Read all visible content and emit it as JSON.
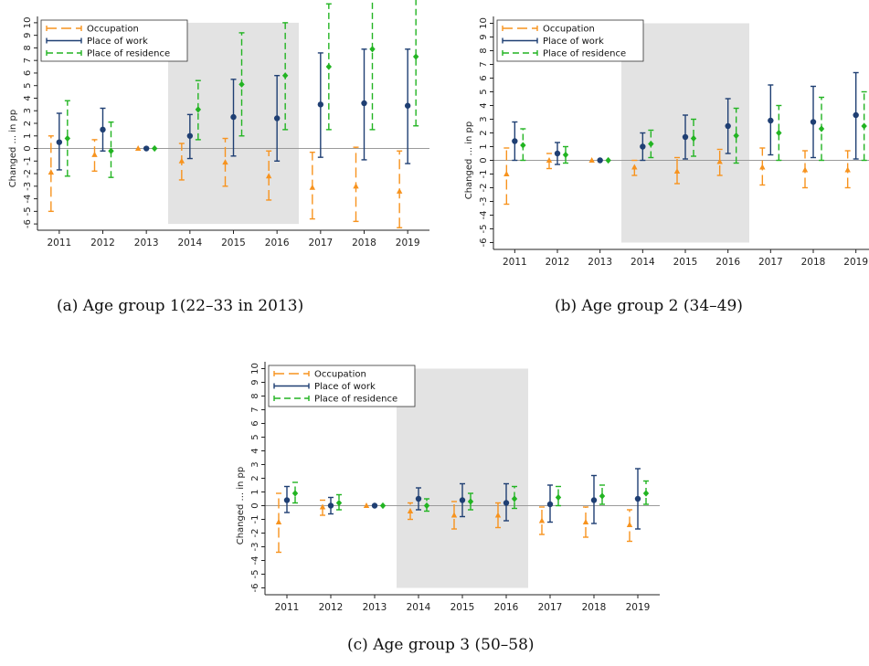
{
  "colors": {
    "occupation": "#f7931e",
    "work": "#1f3f73",
    "residence": "#22b422",
    "shade": "#e3e3e3",
    "axis": "#222222"
  },
  "legend_labels": [
    "Occupation",
    "Place of work",
    "Place of residence"
  ],
  "ylabel": "Changed ... in pp",
  "years": [
    "2011",
    "2012",
    "2013",
    "2014",
    "2015",
    "2016",
    "2017",
    "2018",
    "2019"
  ],
  "chart_data": [
    {
      "type": "scatter",
      "caption": "(a)  Age group 1(22–33 in 2013)",
      "ylim": [
        -6.5,
        10.5
      ],
      "yticks": [
        "-6",
        "-5",
        "-4",
        "-3",
        "-2",
        "-1",
        "0",
        "1",
        "2",
        "3",
        "4",
        "5",
        "6",
        "7",
        "8",
        "9",
        "10"
      ],
      "shaded": [
        "2014",
        "2016"
      ],
      "series": [
        {
          "name": "Occupation",
          "values": [
            -1.9,
            -0.5,
            0,
            -1.0,
            -1.1,
            -2.2,
            -3.1,
            -3.0,
            -3.4
          ],
          "lo": [
            -5.0,
            -1.8,
            0,
            -2.5,
            -3.0,
            -4.1,
            -5.6,
            -5.8,
            -6.3
          ],
          "hi": [
            1.0,
            0.7,
            0,
            0.4,
            0.8,
            -0.2,
            -0.3,
            0.1,
            -0.2
          ]
        },
        {
          "name": "Place of work",
          "values": [
            0.5,
            1.5,
            0,
            1.0,
            2.5,
            2.4,
            3.5,
            3.6,
            3.4
          ],
          "lo": [
            -1.7,
            -0.2,
            0,
            -0.8,
            -0.6,
            -1.0,
            -0.7,
            -0.9,
            -1.2
          ],
          "hi": [
            2.8,
            3.2,
            0,
            2.7,
            5.5,
            5.8,
            7.6,
            7.9,
            7.9
          ]
        },
        {
          "name": "Place of residence",
          "values": [
            0.8,
            -0.2,
            0,
            3.1,
            5.1,
            5.8,
            6.5,
            7.9,
            7.3
          ],
          "lo": [
            -2.2,
            -2.3,
            0,
            0.7,
            1.0,
            1.5,
            1.5,
            1.5,
            1.8
          ],
          "hi": [
            3.8,
            2.1,
            0,
            5.4,
            9.2,
            10.0,
            11.5,
            13.0,
            12.5
          ]
        }
      ]
    },
    {
      "type": "scatter",
      "caption": "(b)  Age group 2 (34–49)",
      "ylim": [
        -6.5,
        10.5
      ],
      "yticks": [
        "-6",
        "-5",
        "-4",
        "-3",
        "-2",
        "-1",
        "0",
        "1",
        "2",
        "3",
        "4",
        "5",
        "6",
        "7",
        "8",
        "9",
        "10"
      ],
      "shaded": [
        "2014",
        "2016"
      ],
      "series": [
        {
          "name": "Occupation",
          "values": [
            -1.0,
            0,
            0,
            -0.5,
            -0.8,
            -0.1,
            -0.5,
            -0.7,
            -0.7
          ],
          "lo": [
            -3.2,
            -0.6,
            0,
            -1.1,
            -1.7,
            -1.1,
            -1.8,
            -2.0,
            -2.0
          ],
          "hi": [
            0.9,
            0.5,
            0,
            0.0,
            0.2,
            0.8,
            0.9,
            0.7,
            0.7
          ]
        },
        {
          "name": "Place of work",
          "values": [
            1.4,
            0.5,
            0,
            1.0,
            1.7,
            2.5,
            2.9,
            2.8,
            3.3
          ],
          "lo": [
            0.0,
            -0.3,
            0,
            0.0,
            0.1,
            0.5,
            0.4,
            0.2,
            0.1
          ],
          "hi": [
            2.8,
            1.3,
            0,
            2.0,
            3.3,
            4.5,
            5.5,
            5.4,
            6.4
          ]
        },
        {
          "name": "Place of residence",
          "values": [
            1.1,
            0.4,
            0,
            1.2,
            1.6,
            1.8,
            2.0,
            2.3,
            2.5
          ],
          "lo": [
            0.0,
            -0.2,
            0,
            0.2,
            0.3,
            -0.2,
            0.0,
            0.0,
            0.0
          ],
          "hi": [
            2.3,
            1.0,
            0,
            2.2,
            3.0,
            3.8,
            4.0,
            4.6,
            5.0
          ]
        }
      ]
    },
    {
      "type": "scatter",
      "caption": "(c)  Age group 3 (50–58)",
      "ylim": [
        -6.5,
        10.5
      ],
      "yticks": [
        "-6",
        "-5",
        "-4",
        "-3",
        "-2",
        "-1",
        "0",
        "1",
        "2",
        "3",
        "4",
        "5",
        "6",
        "7",
        "8",
        "9",
        "10"
      ],
      "shaded": [
        "2014",
        "2016"
      ],
      "series": [
        {
          "name": "Occupation",
          "values": [
            -1.2,
            -0.1,
            0,
            -0.4,
            -0.7,
            -0.7,
            -1.1,
            -1.2,
            -1.4
          ],
          "lo": [
            -3.4,
            -0.7,
            0,
            -1.0,
            -1.7,
            -1.6,
            -2.1,
            -2.3,
            -2.6
          ],
          "hi": [
            0.9,
            0.4,
            0,
            0.2,
            0.3,
            0.2,
            -0.1,
            -0.1,
            -0.3
          ]
        },
        {
          "name": "Place of work",
          "values": [
            0.4,
            0.0,
            0,
            0.5,
            0.4,
            0.2,
            0.1,
            0.4,
            0.5
          ],
          "lo": [
            -0.5,
            -0.6,
            0,
            -0.3,
            -0.8,
            -1.1,
            -1.2,
            -1.3,
            -1.7
          ],
          "hi": [
            1.4,
            0.6,
            0,
            1.3,
            1.6,
            1.6,
            1.5,
            2.2,
            2.7
          ]
        },
        {
          "name": "Place of residence",
          "values": [
            0.9,
            0.2,
            0,
            0.0,
            0.3,
            0.5,
            0.6,
            0.7,
            0.9
          ],
          "lo": [
            0.2,
            -0.3,
            0,
            -0.4,
            -0.3,
            -0.2,
            0.0,
            0.1,
            0.1
          ],
          "hi": [
            1.7,
            0.8,
            0,
            0.5,
            0.9,
            1.4,
            1.4,
            1.5,
            1.8
          ]
        }
      ]
    }
  ]
}
